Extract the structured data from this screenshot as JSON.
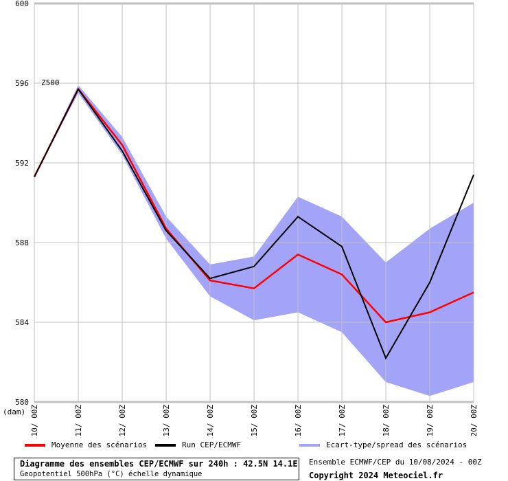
{
  "chart_data": {
    "type": "line",
    "annotation": "Z500",
    "y_unit_label": "(dam)",
    "categories": [
      "10/ 00Z",
      "11/ 00Z",
      "12/ 00Z",
      "13/ 00Z",
      "14/ 00Z",
      "15/ 00Z",
      "16/ 00Z",
      "17/ 00Z",
      "18/ 00Z",
      "19/ 00Z",
      "20/ 00Z"
    ],
    "ylim": [
      580,
      600
    ],
    "yticks": [
      580,
      584,
      588,
      592,
      596,
      600
    ],
    "grid": true,
    "legend_placement": "bottom",
    "series": [
      {
        "name": "Moyenne des scénarios",
        "color": "#ff0000",
        "values": [
          591.3,
          595.7,
          592.9,
          588.7,
          586.1,
          585.7,
          587.4,
          586.4,
          584.0,
          584.5,
          585.5
        ]
      },
      {
        "name": "Run CEP/ECMWF",
        "color": "#000000",
        "values": [
          591.3,
          595.7,
          592.6,
          588.6,
          586.2,
          586.8,
          589.3,
          587.8,
          582.2,
          586.0,
          591.4
        ]
      }
    ],
    "band": {
      "name": "Ecart-type/spread des scénarios",
      "color": "#a3a3f8",
      "upper": [
        591.3,
        595.9,
        593.3,
        589.3,
        586.9,
        587.3,
        590.3,
        589.3,
        587.0,
        588.7,
        590.0
      ],
      "lower": [
        591.3,
        595.5,
        592.4,
        588.2,
        585.3,
        584.1,
        584.5,
        583.5,
        581.0,
        580.3,
        581.0
      ]
    }
  },
  "footer": {
    "title": "Diagramme des ensembles CEP/ECMWF sur 240h : 42.5N 14.1E",
    "subtitle": "Geopotentiel 500hPa (°C) échelle dynamique",
    "run_info": "Ensemble ECMWF/CEP du 10/08/2024 - 00Z",
    "copyright": "Copyright 2024 Meteociel.fr"
  }
}
